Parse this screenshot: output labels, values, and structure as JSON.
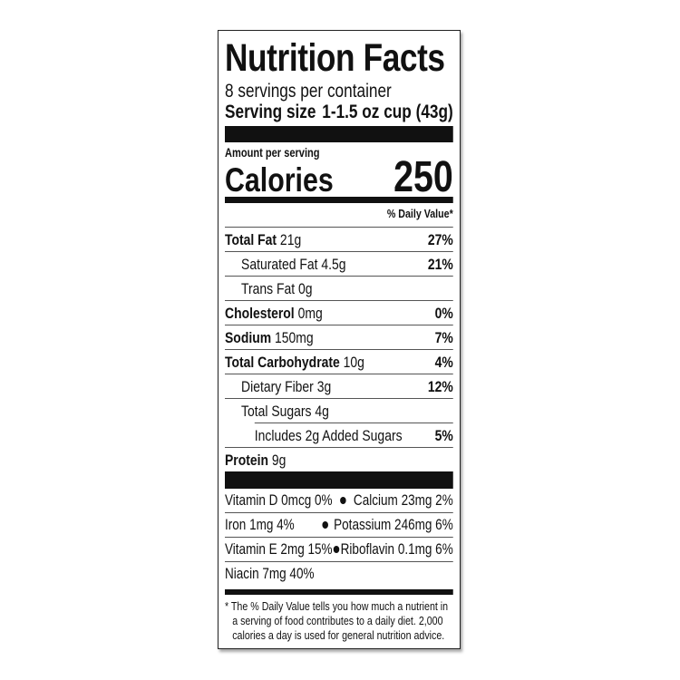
{
  "title": "Nutrition Facts",
  "servings": "8 servings per container",
  "serving_size": {
    "label": "Serving size",
    "value": "1-1.5 oz cup (43g)"
  },
  "amount_label": "Amount per serving",
  "calories": {
    "label": "Calories",
    "value": "250"
  },
  "daily_value_header": "% Daily Value*",
  "nutrients": [
    {
      "name": "Total Fat",
      "amount": "21g",
      "dv": "27%"
    },
    {
      "name": "Saturated Fat",
      "amount": "4.5g",
      "dv": "21%"
    },
    {
      "name": "Trans Fat",
      "amount": "0g",
      "dv": ""
    },
    {
      "name": "Cholesterol",
      "amount": "0mg",
      "dv": "0%"
    },
    {
      "name": "Sodium",
      "amount": "150mg",
      "dv": "7%"
    },
    {
      "name": "Total Carbohydrate",
      "amount": "10g",
      "dv": "4%"
    },
    {
      "name": "Dietary Fiber",
      "amount": "3g",
      "dv": "12%"
    },
    {
      "name": "Total Sugars",
      "amount": "4g",
      "dv": ""
    },
    {
      "name": "Includes 2g Added Sugars",
      "amount": "",
      "dv": "5%"
    },
    {
      "name": "Protein",
      "amount": "9g",
      "dv": ""
    }
  ],
  "micros": [
    {
      "left": "Vitamin D 0mcg 0%",
      "right": "Calcium 23mg 2%"
    },
    {
      "left": "Iron 1mg 4%",
      "right": "Potassium 246mg 6%"
    },
    {
      "left": "Vitamin E 2mg 15%",
      "right": "Riboflavin 0.1mg 6%"
    },
    {
      "left": "Niacin 7mg 40%",
      "right": ""
    }
  ],
  "footnote": "* The % Daily Value tells you how much a nutrient in a serving of food contributes to a daily diet. 2,000 calories a day is used for general nutrition advice."
}
